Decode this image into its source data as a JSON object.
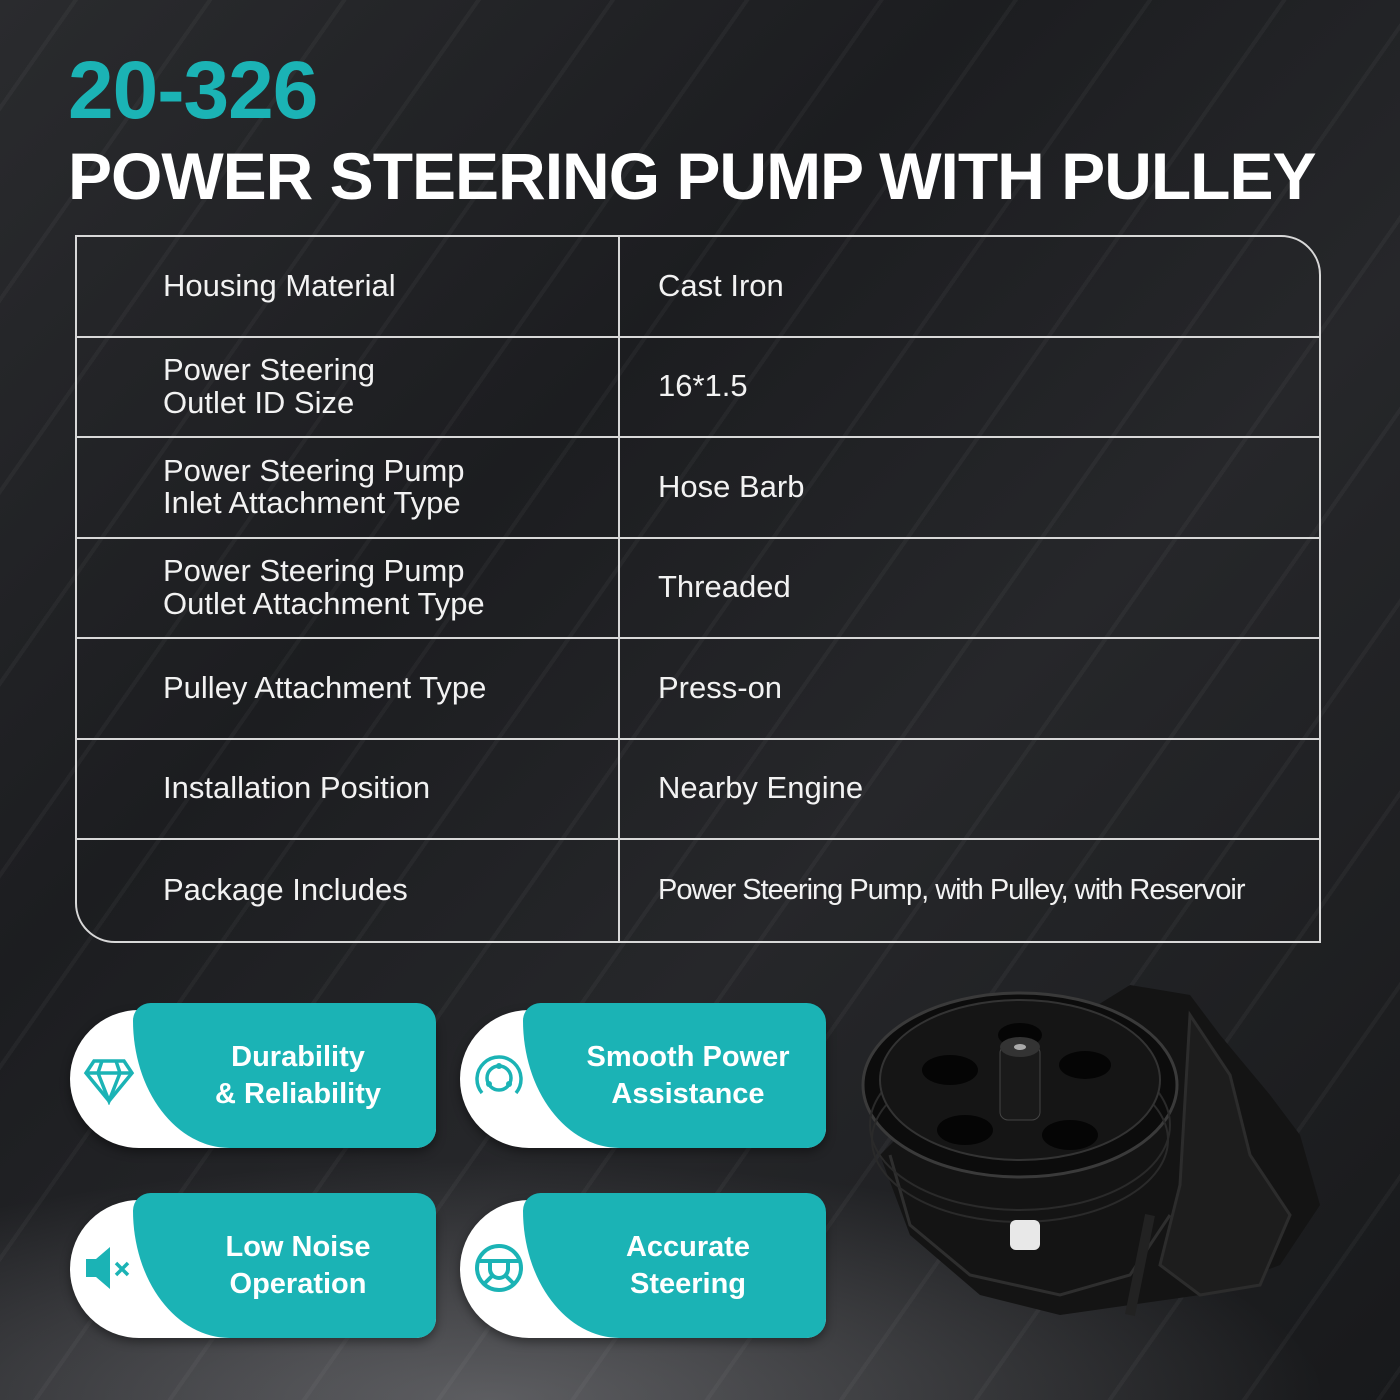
{
  "header": {
    "code": "20-326",
    "title": "POWER STEERING PUMP WITH PULLEY"
  },
  "specs": [
    {
      "label": "Housing Material",
      "value": "Cast Iron"
    },
    {
      "label": "Power Steering\nOutlet ID Size",
      "value": "16*1.5"
    },
    {
      "label": "Power Steering Pump\nInlet Attachment Type",
      "value": "Hose Barb"
    },
    {
      "label": "Power Steering Pump\nOutlet Attachment Type",
      "value": "Threaded"
    },
    {
      "label": "Pulley Attachment Type",
      "value": "Press-on"
    },
    {
      "label": "Installation Position",
      "value": "Nearby Engine"
    },
    {
      "label": "Package Includes",
      "value": "Power Steering Pump, with Pulley, with Reservoir"
    }
  ],
  "features": [
    {
      "line1": "Durability",
      "line2": "& Reliability",
      "icon": "diamond-icon"
    },
    {
      "line1": "Smooth Power",
      "line2": "Assistance",
      "icon": "circular-flow-icon"
    },
    {
      "line1": "Low Noise",
      "line2": "Operation",
      "icon": "speaker-mute-icon"
    },
    {
      "line1": "Accurate",
      "line2": "Steering",
      "icon": "steering-wheel-icon"
    }
  ],
  "colors": {
    "accent": "#1bb3b5",
    "background": "#1f2023"
  }
}
